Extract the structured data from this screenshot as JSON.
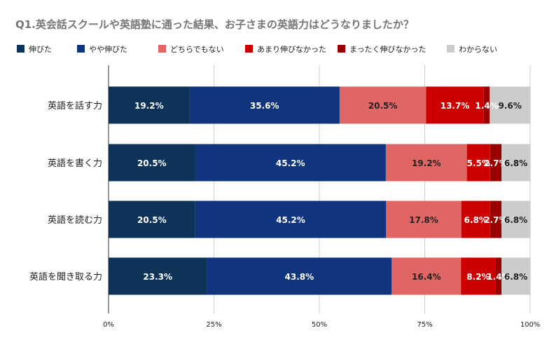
{
  "chart_data": {
    "type": "bar",
    "orientation": "horizontal",
    "stacked": "percent",
    "title": "Q1.英会話スクールや英語塾に通った結果、お子さまの英語力はどうなりましたか？",
    "xlabel": "",
    "ylabel": "",
    "xlim": [
      0,
      100
    ],
    "x_ticks": [
      "0%",
      "25%",
      "50%",
      "75%",
      "100%"
    ],
    "legend_position": "top",
    "grid": true,
    "categories": [
      "英語を話す力",
      "英語を書く力",
      "英語を読む力",
      "英語を聞き取る力"
    ],
    "series": [
      {
        "name": "伸びた",
        "color": "#0e3358",
        "label_color": "#ffffff",
        "values": [
          19.2,
          20.5,
          20.5,
          23.3
        ],
        "labels": [
          "19.2%",
          "20.5%",
          "20.5%",
          "23.3%"
        ]
      },
      {
        "name": "やや伸びた",
        "color": "#10357e",
        "label_color": "#ffffff",
        "values": [
          35.6,
          45.2,
          45.2,
          43.8
        ],
        "labels": [
          "35.6%",
          "45.2%",
          "45.2%",
          "43.8%"
        ]
      },
      {
        "name": "どちらでもない",
        "color": "#e06666",
        "label_color": "#222222",
        "values": [
          20.5,
          19.2,
          17.8,
          16.4
        ],
        "labels": [
          "20.5%",
          "19.2%",
          "17.8%",
          "16.4%"
        ]
      },
      {
        "name": "あまり伸びなかった",
        "color": "#cc0000",
        "label_color": "#ffffff",
        "values": [
          13.7,
          5.5,
          6.8,
          8.2
        ],
        "labels": [
          "13.7%",
          "5.5%",
          "6.8%",
          "8.2%"
        ]
      },
      {
        "name": "まったく伸びなかった",
        "color": "#990000",
        "label_color": "#ffffff",
        "values": [
          1.4,
          2.7,
          2.7,
          1.4
        ],
        "labels": [
          "1.4%",
          "2.7%",
          "2.7%",
          "1.4%"
        ]
      },
      {
        "name": "わからない",
        "color": "#cccccc",
        "label_color": "#222222",
        "values": [
          9.6,
          6.8,
          6.8,
          6.8
        ],
        "labels": [
          "9.6%",
          "6.8%",
          "6.8%",
          "6.8%"
        ]
      }
    ]
  }
}
